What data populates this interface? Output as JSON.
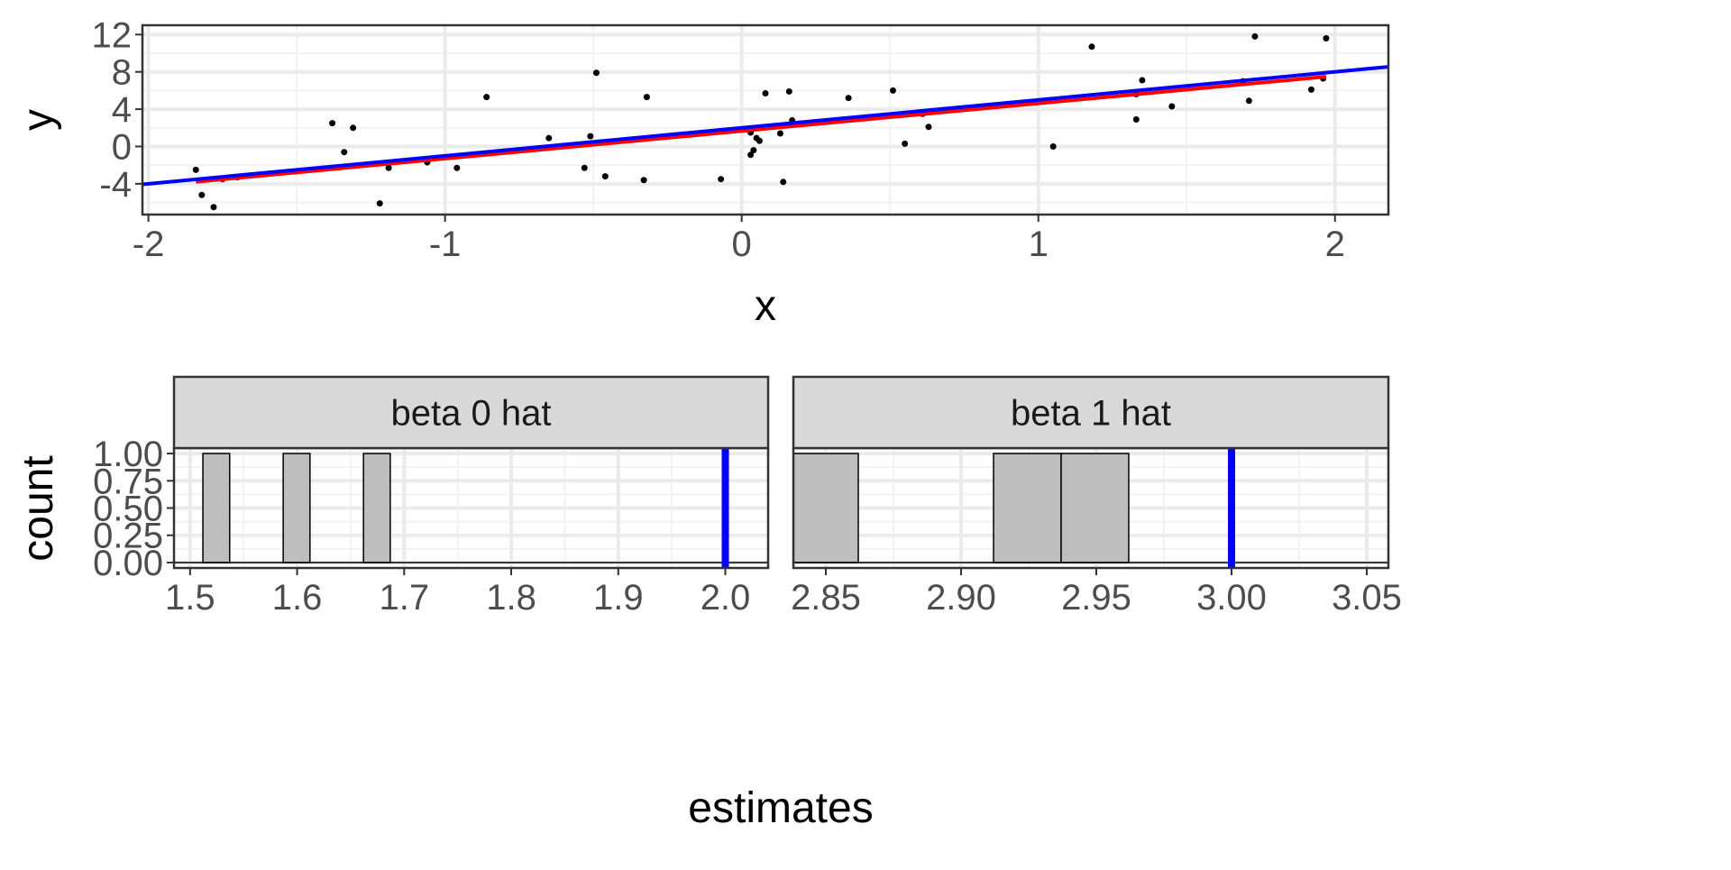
{
  "colors": {
    "panel_bg": "#ffffff",
    "grid_major": "#ebebeb",
    "grid_minor": "#f2f2f2",
    "border": "#333333",
    "tick_text": "#4d4d4d",
    "title_text": "#000000",
    "points": "#000000",
    "true_line": "#0000ff",
    "fit_line": "#ff0000",
    "bar_fill": "#bebebe",
    "bar_edge": "#000000",
    "strip_bg": "#d9d9d9",
    "strip_text": "#1a1a1a"
  },
  "chart_data": [
    {
      "type": "scatter",
      "title": "",
      "xlabel": "x",
      "ylabel": "y",
      "xlim": [
        -2.02,
        2.18
      ],
      "ylim": [
        -7.3,
        13.0
      ],
      "x_ticks": [
        {
          "value": -2,
          "label": "-2"
        },
        {
          "value": -1,
          "label": "-1"
        },
        {
          "value": 0,
          "label": "0"
        },
        {
          "value": 1,
          "label": "1"
        },
        {
          "value": 2,
          "label": "2"
        }
      ],
      "y_ticks": [
        {
          "value": -4,
          "label": "-4"
        },
        {
          "value": 0,
          "label": "0"
        },
        {
          "value": 4,
          "label": "4"
        },
        {
          "value": 8,
          "label": "8"
        },
        {
          "value": 12,
          "label": "12"
        }
      ],
      "points": [
        [
          -1.84,
          -2.5
        ],
        [
          -1.82,
          -5.2
        ],
        [
          -1.78,
          -6.5
        ],
        [
          -1.75,
          -3.5
        ],
        [
          -1.7,
          -3.3
        ],
        [
          -1.38,
          2.5
        ],
        [
          -1.34,
          -0.6
        ],
        [
          -1.31,
          2.0
        ],
        [
          -1.22,
          -6.1
        ],
        [
          -1.19,
          -2.3
        ],
        [
          -1.06,
          -1.7
        ],
        [
          -0.96,
          -2.3
        ],
        [
          -0.86,
          5.3
        ],
        [
          -0.65,
          0.9
        ],
        [
          -0.53,
          -2.3
        ],
        [
          -0.51,
          1.1
        ],
        [
          -0.49,
          7.9
        ],
        [
          -0.46,
          -3.2
        ],
        [
          -0.33,
          -3.6
        ],
        [
          -0.32,
          5.3
        ],
        [
          -0.07,
          -3.5
        ],
        [
          0.03,
          -0.9
        ],
        [
          0.03,
          1.5
        ],
        [
          0.04,
          -0.4
        ],
        [
          0.05,
          0.9
        ],
        [
          0.06,
          0.6
        ],
        [
          0.08,
          5.7
        ],
        [
          0.13,
          1.4
        ],
        [
          0.14,
          -3.8
        ],
        [
          0.16,
          5.9
        ],
        [
          0.17,
          2.8
        ],
        [
          0.36,
          5.2
        ],
        [
          0.51,
          6.0
        ],
        [
          0.55,
          0.3
        ],
        [
          0.61,
          3.5
        ],
        [
          0.63,
          2.1
        ],
        [
          1.05,
          0.0
        ],
        [
          1.18,
          10.7
        ],
        [
          1.33,
          5.6
        ],
        [
          1.33,
          2.9
        ],
        [
          1.35,
          7.1
        ],
        [
          1.45,
          4.3
        ],
        [
          1.69,
          7.0
        ],
        [
          1.71,
          4.9
        ],
        [
          1.73,
          11.8
        ],
        [
          1.92,
          6.1
        ],
        [
          1.96,
          7.3
        ],
        [
          1.97,
          11.6
        ]
      ],
      "lines": [
        {
          "name": "true line",
          "color": "#0000ff",
          "intercept": 2.0,
          "slope": 3.0,
          "x_range": [
            -2.02,
            2.18
          ]
        },
        {
          "name": "fitted line",
          "color": "#ff0000",
          "intercept": 1.66,
          "slope": 2.96,
          "x_range": [
            -1.84,
            1.97
          ]
        }
      ]
    },
    {
      "type": "bar",
      "panel": "beta 0 hat",
      "xlabel": "estimates",
      "ylabel": "count",
      "xlim": [
        1.485,
        2.04
      ],
      "ylim": [
        -0.05,
        1.05
      ],
      "x_ticks": [
        {
          "value": 1.5,
          "label": "1.5"
        },
        {
          "value": 1.6,
          "label": "1.6"
        },
        {
          "value": 1.7,
          "label": "1.7"
        },
        {
          "value": 1.8,
          "label": "1.8"
        },
        {
          "value": 1.9,
          "label": "1.9"
        },
        {
          "value": 2.0,
          "label": "2.0"
        }
      ],
      "y_ticks": [
        {
          "value": 0.0,
          "label": "0.00"
        },
        {
          "value": 0.25,
          "label": "0.25"
        },
        {
          "value": 0.5,
          "label": "0.50"
        },
        {
          "value": 0.75,
          "label": "0.75"
        },
        {
          "value": 1.0,
          "label": "1.00"
        }
      ],
      "bins": [
        {
          "x0": 1.512,
          "x1": 1.537,
          "count": 1
        },
        {
          "x0": 1.587,
          "x1": 1.612,
          "count": 1
        },
        {
          "x0": 1.662,
          "x1": 1.687,
          "count": 1
        }
      ],
      "true_value": 2.0
    },
    {
      "type": "bar",
      "panel": "beta 1 hat",
      "xlabel": "estimates",
      "ylabel": "count",
      "xlim": [
        2.838,
        3.058
      ],
      "ylim": [
        -0.05,
        1.05
      ],
      "x_ticks": [
        {
          "value": 2.85,
          "label": "2.85"
        },
        {
          "value": 2.9,
          "label": "2.90"
        },
        {
          "value": 2.95,
          "label": "2.95"
        },
        {
          "value": 3.0,
          "label": "3.00"
        },
        {
          "value": 3.05,
          "label": "3.05"
        }
      ],
      "y_ticks": [
        {
          "value": 0.0,
          "label": "0.00"
        },
        {
          "value": 0.25,
          "label": "0.25"
        },
        {
          "value": 0.5,
          "label": "0.50"
        },
        {
          "value": 0.75,
          "label": "0.75"
        },
        {
          "value": 1.0,
          "label": "1.00"
        }
      ],
      "bins": [
        {
          "x0": 2.838,
          "x1": 2.862,
          "count": 1
        },
        {
          "x0": 2.912,
          "x1": 2.937,
          "count": 1
        },
        {
          "x0": 2.937,
          "x1": 2.962,
          "count": 1
        }
      ],
      "true_value": 3.0
    }
  ]
}
